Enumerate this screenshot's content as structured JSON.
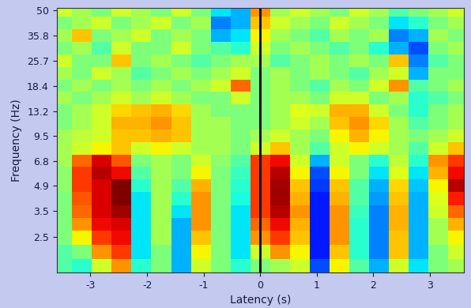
{
  "chart_data": {
    "type": "heatmap",
    "color": "jet",
    "x_label": "Latency (s)",
    "y_label": "Frequency (Hz)",
    "log": "y",
    "xlim": [
      -3.6,
      3.6
    ],
    "xticks": [
      -3,
      -2,
      -1,
      0,
      1,
      2,
      3
    ],
    "ylim": [
      1.55,
      52
    ],
    "yticks": [
      2.5,
      3.5,
      4.9,
      6.8,
      9.5,
      13.2,
      18.4,
      25.7,
      35.8,
      50
    ],
    "event_latency": 0,
    "color_range": [
      0,
      1
    ],
    "x": [
      -3.5,
      -3.15,
      -2.8,
      -2.45,
      -2.1,
      -1.75,
      -1.4,
      -1.05,
      -0.7,
      -0.35,
      0,
      0.35,
      0.7,
      1.05,
      1.4,
      1.75,
      2.1,
      2.45,
      2.8,
      3.15,
      3.5
    ],
    "y": [
      1.7,
      2.0,
      2.5,
      2.9,
      3.5,
      4.1,
      4.9,
      5.8,
      6.8,
      8.0,
      9.5,
      11.2,
      13.2,
      15.6,
      18.4,
      21.7,
      25.7,
      30.3,
      35.8,
      42.3,
      50
    ],
    "cells": [
      [
        0.45,
        0.4,
        0.6,
        0.75,
        0.4,
        0.5,
        0.3,
        0.6,
        0.5,
        0.4,
        0.5,
        0.55,
        0.6,
        0.2,
        0.65,
        0.45,
        0.3,
        0.6,
        0.35,
        0.5,
        0.55
      ],
      [
        0.45,
        0.5,
        0.75,
        0.85,
        0.35,
        0.5,
        0.3,
        0.65,
        0.5,
        0.35,
        0.6,
        0.75,
        0.65,
        0.15,
        0.7,
        0.4,
        0.25,
        0.7,
        0.3,
        0.5,
        0.6
      ],
      [
        0.5,
        0.65,
        0.85,
        0.9,
        0.35,
        0.55,
        0.3,
        0.7,
        0.5,
        0.35,
        0.75,
        0.85,
        0.7,
        0.15,
        0.75,
        0.4,
        0.25,
        0.7,
        0.3,
        0.55,
        0.65
      ],
      [
        0.5,
        0.75,
        0.9,
        0.92,
        0.35,
        0.55,
        0.3,
        0.75,
        0.5,
        0.35,
        0.8,
        0.9,
        0.72,
        0.15,
        0.75,
        0.4,
        0.25,
        0.72,
        0.3,
        0.55,
        0.72
      ],
      [
        0.5,
        0.8,
        0.92,
        0.97,
        0.35,
        0.55,
        0.35,
        0.75,
        0.5,
        0.35,
        0.85,
        0.95,
        0.75,
        0.15,
        0.75,
        0.42,
        0.25,
        0.72,
        0.3,
        0.6,
        0.8
      ],
      [
        0.5,
        0.82,
        0.92,
        1.0,
        0.35,
        0.55,
        0.4,
        0.75,
        0.5,
        0.38,
        0.85,
        0.97,
        0.72,
        0.15,
        0.72,
        0.45,
        0.28,
        0.7,
        0.3,
        0.62,
        0.88
      ],
      [
        0.52,
        0.85,
        0.92,
        1.0,
        0.4,
        0.55,
        0.45,
        0.72,
        0.5,
        0.4,
        0.85,
        0.97,
        0.7,
        0.18,
        0.7,
        0.45,
        0.3,
        0.68,
        0.32,
        0.65,
        0.95
      ],
      [
        0.52,
        0.85,
        0.95,
        0.9,
        0.45,
        0.55,
        0.5,
        0.65,
        0.5,
        0.42,
        0.85,
        0.95,
        0.65,
        0.2,
        0.65,
        0.5,
        0.35,
        0.62,
        0.35,
        0.72,
        0.9
      ],
      [
        0.55,
        0.8,
        0.92,
        0.82,
        0.5,
        0.55,
        0.5,
        0.6,
        0.52,
        0.45,
        0.85,
        0.9,
        0.6,
        0.3,
        0.6,
        0.5,
        0.4,
        0.58,
        0.4,
        0.75,
        0.85
      ],
      [
        0.55,
        0.6,
        0.65,
        0.7,
        0.6,
        0.65,
        0.6,
        0.55,
        0.55,
        0.5,
        0.6,
        0.7,
        0.55,
        0.45,
        0.6,
        0.65,
        0.6,
        0.55,
        0.45,
        0.6,
        0.7
      ],
      [
        0.55,
        0.58,
        0.6,
        0.7,
        0.7,
        0.72,
        0.7,
        0.55,
        0.55,
        0.5,
        0.55,
        0.6,
        0.55,
        0.5,
        0.65,
        0.72,
        0.65,
        0.55,
        0.5,
        0.55,
        0.6
      ],
      [
        0.5,
        0.55,
        0.6,
        0.72,
        0.72,
        0.75,
        0.7,
        0.55,
        0.55,
        0.5,
        0.5,
        0.55,
        0.6,
        0.55,
        0.7,
        0.75,
        0.68,
        0.55,
        0.45,
        0.5,
        0.55
      ],
      [
        0.5,
        0.55,
        0.6,
        0.68,
        0.7,
        0.72,
        0.68,
        0.55,
        0.5,
        0.5,
        0.5,
        0.55,
        0.62,
        0.6,
        0.72,
        0.72,
        0.6,
        0.5,
        0.4,
        0.5,
        0.55
      ],
      [
        0.55,
        0.5,
        0.55,
        0.6,
        0.55,
        0.6,
        0.55,
        0.5,
        0.5,
        0.6,
        0.5,
        0.55,
        0.55,
        0.5,
        0.6,
        0.6,
        0.5,
        0.55,
        0.4,
        0.45,
        0.5
      ],
      [
        0.5,
        0.55,
        0.5,
        0.55,
        0.5,
        0.55,
        0.5,
        0.55,
        0.6,
        0.8,
        0.5,
        0.55,
        0.5,
        0.45,
        0.55,
        0.5,
        0.6,
        0.75,
        0.45,
        0.5,
        0.55
      ],
      [
        0.55,
        0.5,
        0.6,
        0.55,
        0.45,
        0.5,
        0.55,
        0.5,
        0.55,
        0.6,
        0.5,
        0.55,
        0.5,
        0.55,
        0.5,
        0.45,
        0.55,
        0.6,
        0.3,
        0.5,
        0.5
      ],
      [
        0.6,
        0.5,
        0.5,
        0.7,
        0.5,
        0.55,
        0.5,
        0.45,
        0.5,
        0.55,
        0.55,
        0.45,
        0.5,
        0.55,
        0.5,
        0.55,
        0.5,
        0.7,
        0.25,
        0.45,
        0.5
      ],
      [
        0.5,
        0.55,
        0.45,
        0.6,
        0.5,
        0.5,
        0.6,
        0.5,
        0.45,
        0.4,
        0.6,
        0.5,
        0.55,
        0.5,
        0.45,
        0.5,
        0.4,
        0.3,
        0.2,
        0.5,
        0.55
      ],
      [
        0.55,
        0.7,
        0.5,
        0.55,
        0.6,
        0.5,
        0.55,
        0.5,
        0.3,
        0.35,
        0.65,
        0.55,
        0.5,
        0.45,
        0.55,
        0.5,
        0.55,
        0.25,
        0.3,
        0.55,
        0.5
      ],
      [
        0.5,
        0.55,
        0.6,
        0.5,
        0.55,
        0.6,
        0.5,
        0.55,
        0.25,
        0.3,
        0.7,
        0.6,
        0.55,
        0.5,
        0.6,
        0.55,
        0.5,
        0.35,
        0.4,
        0.5,
        0.55
      ],
      [
        0.6,
        0.55,
        0.5,
        0.6,
        0.55,
        0.5,
        0.6,
        0.5,
        0.35,
        0.3,
        0.75,
        0.55,
        0.6,
        0.55,
        0.5,
        0.6,
        0.55,
        0.45,
        0.5,
        0.55,
        0.6
      ]
    ]
  }
}
